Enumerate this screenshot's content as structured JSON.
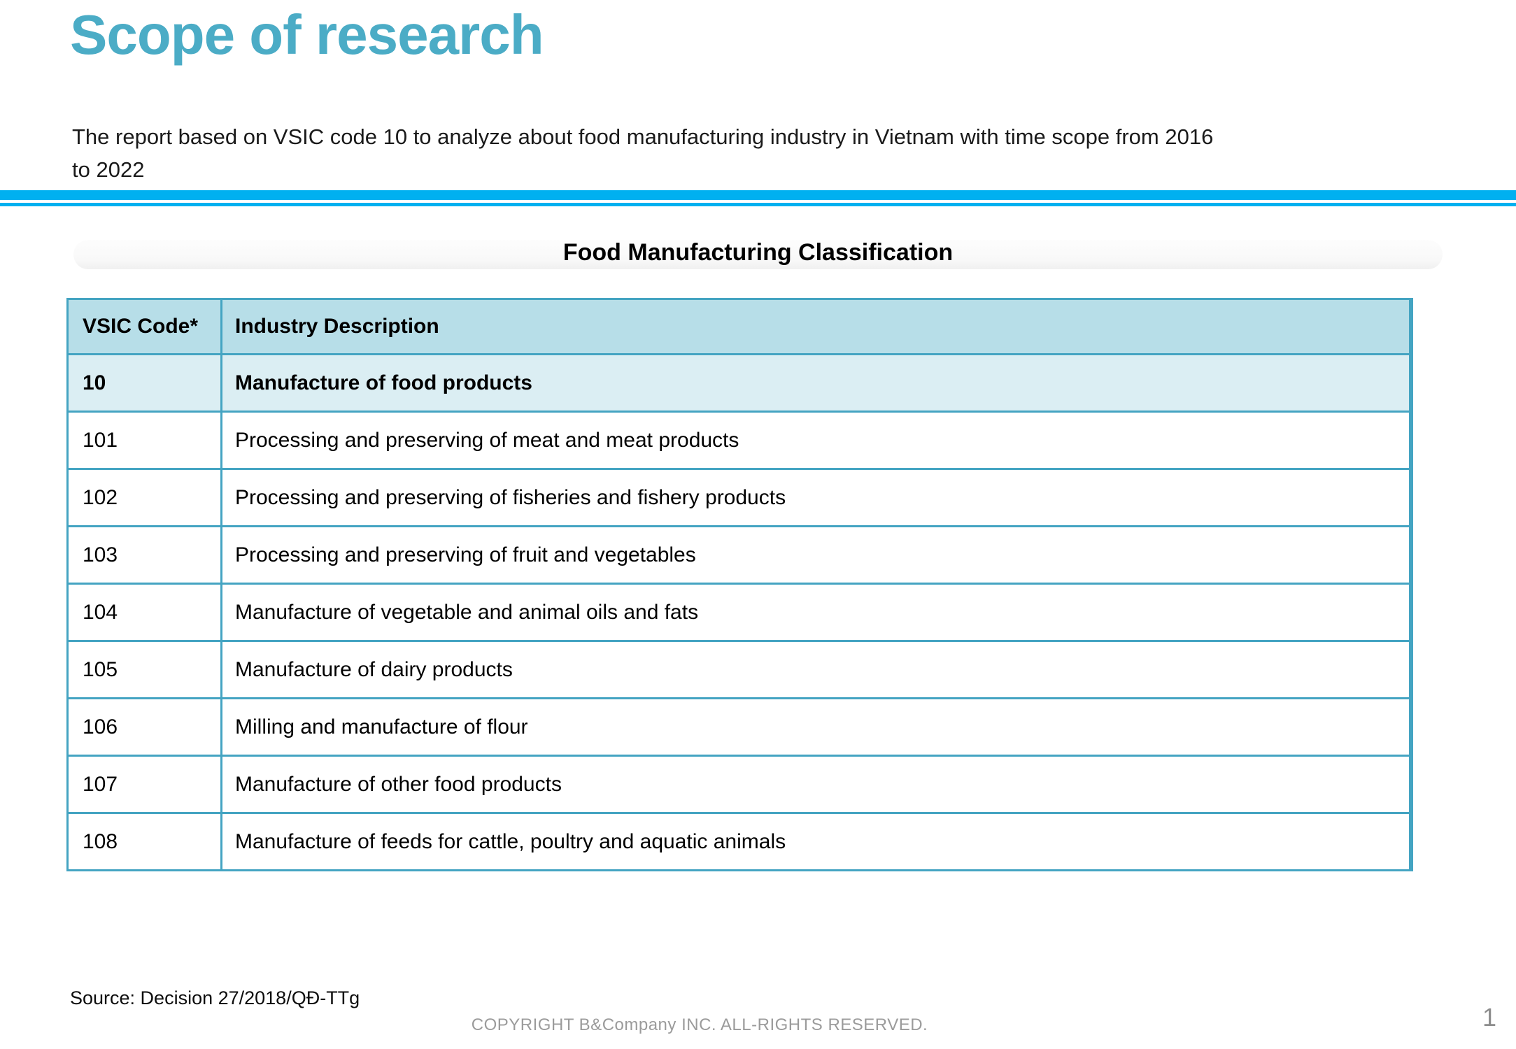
{
  "slide": {
    "title": "Scope of research",
    "intro_line1": "The report based on VSIC code 10 to analyze about food manufacturing industry in Vietnam with time scope from 2016",
    "intro_line2": "to 2022",
    "source": "Source: Decision 27/2018/QĐ-TTg",
    "copyright": "COPYRIGHT B&Company INC. ALL-RIGHTS RESERVED.",
    "page_number": "1"
  },
  "table": {
    "caption": "Food Manufacturing Classification",
    "columns": [
      "VSIC Code*",
      "Industry Description"
    ],
    "rows": [
      {
        "code": "10",
        "description": "Manufacture of food products"
      },
      {
        "code": "101",
        "description": "Processing and preserving of meat and meat products"
      },
      {
        "code": "102",
        "description": "Processing and preserving of fisheries and fishery products"
      },
      {
        "code": "103",
        "description": "Processing and preserving of fruit and vegetables"
      },
      {
        "code": "104",
        "description": "Manufacture of vegetable and animal oils and fats"
      },
      {
        "code": "105",
        "description": "Manufacture of dairy products"
      },
      {
        "code": "106",
        "description": "Milling and manufacture of flour"
      },
      {
        "code": "107",
        "description": "Manufacture of other food products"
      },
      {
        "code": "108",
        "description": "Manufacture of feeds for cattle, poultry and aquatic animals"
      }
    ]
  },
  "colors": {
    "accent_title": "#4BACC6",
    "divider": "#00B0F0",
    "table_border": "#44A4C2",
    "header_fill": "#B7DEE8",
    "subheader_fill": "#DBEEF3",
    "footer_gray": "#9B9B9B"
  }
}
